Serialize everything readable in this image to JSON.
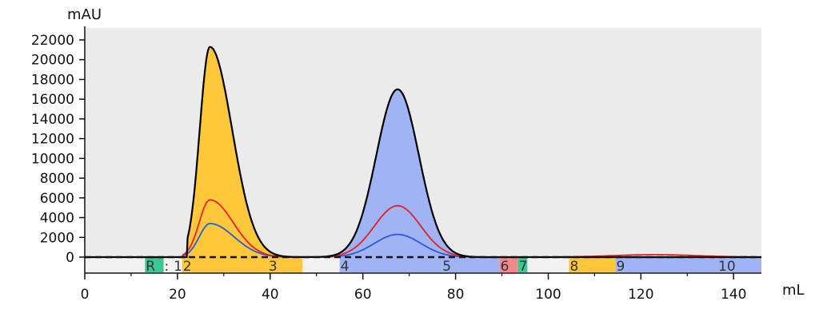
{
  "chart_data": {
    "type": "area",
    "title": "",
    "xlabel": "mL",
    "ylabel": "mAU",
    "xlim": [
      0,
      146
    ],
    "ylim": [
      0,
      22000
    ],
    "x_ticks": [
      0,
      20,
      40,
      60,
      80,
      100,
      120,
      140
    ],
    "y_ticks": [
      0,
      2000,
      4000,
      6000,
      8000,
      10000,
      12000,
      14000,
      16000,
      18000,
      20000,
      22000
    ],
    "grid": false,
    "plot_background": "#ebebeb",
    "series": [
      {
        "color": "#000000",
        "peaks": [
          {
            "center": 27,
            "height": 21300,
            "sigma_left": 2.2,
            "sigma_right": 4.8,
            "start": 22
          },
          {
            "center": 67.5,
            "height": 17000,
            "sigma_left": 4.6,
            "sigma_right": 4.6
          }
        ]
      },
      {
        "color": "#e82020",
        "peaks": [
          {
            "center": 27,
            "height": 5800,
            "sigma_left": 2.3,
            "sigma_right": 5.0,
            "start": 21
          },
          {
            "center": 67.5,
            "height": 5200,
            "sigma_left": 5.0,
            "sigma_right": 5.0
          },
          {
            "center": 123,
            "height": 250,
            "sigma_left": 9,
            "sigma_right": 9
          }
        ]
      },
      {
        "color": "#2a5ad8",
        "peaks": [
          {
            "center": 27,
            "height": 3400,
            "sigma_left": 2.3,
            "sigma_right": 5.2,
            "start": 21
          },
          {
            "center": 67.5,
            "height": 2300,
            "sigma_left": 5.0,
            "sigma_right": 5.0
          }
        ]
      }
    ],
    "fractions": [
      {
        "label": "",
        "start": 0,
        "end": 13,
        "color": "#f2f2f2"
      },
      {
        "label": "R",
        "start": 13,
        "end": 17,
        "color": "#3ec890"
      },
      {
        "label": ":",
        "start": 17,
        "end": 19,
        "color": "#f2f2f2"
      },
      {
        "label": "1",
        "start": 19,
        "end": 21,
        "color": "#f2f2f2"
      },
      {
        "label": "2",
        "start": 21,
        "end": 39.5,
        "color": "#ffc83a"
      },
      {
        "label": "3",
        "start": 39.5,
        "end": 47,
        "color": "#ffc83a"
      },
      {
        "label": "",
        "start": 47,
        "end": 55,
        "color": "#f2f2f2"
      },
      {
        "label": "4",
        "start": 55,
        "end": 77,
        "color": "#9fb3f5"
      },
      {
        "label": "5",
        "start": 77,
        "end": 89.5,
        "color": "#9fb3f5"
      },
      {
        "label": "6",
        "start": 89.5,
        "end": 93.5,
        "color": "#f28a8a"
      },
      {
        "label": "7",
        "start": 93.5,
        "end": 95.5,
        "color": "#3ec890"
      },
      {
        "label": "",
        "start": 95.5,
        "end": 104.5,
        "color": "#f2f2f2"
      },
      {
        "label": "8",
        "start": 104.5,
        "end": 114.5,
        "color": "#ffc83a"
      },
      {
        "label": "9",
        "start": 114.5,
        "end": 136.5,
        "color": "#9fb3f5"
      },
      {
        "label": "10",
        "start": 136.5,
        "end": 146,
        "color": "#9fb3f5"
      }
    ],
    "fill_regions": [
      {
        "start": 21,
        "end": 39.5,
        "color": "#ffc83a"
      },
      {
        "start": 39.5,
        "end": 47,
        "color": "#ffc83a"
      },
      {
        "start": 55,
        "end": 89.5,
        "color": "#9fb3f5"
      },
      {
        "start": 114.5,
        "end": 146,
        "color": "#9fb3f5"
      }
    ]
  }
}
